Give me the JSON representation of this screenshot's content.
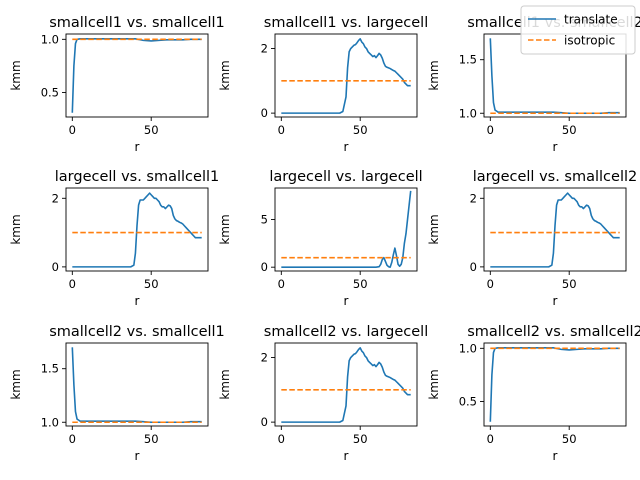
{
  "colors": {
    "translate": "#1f77b4",
    "isotropic": "#ff7f0e"
  },
  "legend": {
    "placement": "top-right",
    "entries": [
      {
        "name": "translate",
        "style": "solid",
        "color": "#1f77b4"
      },
      {
        "name": "isotropic",
        "style": "dashed",
        "color": "#ff7f0e"
      }
    ]
  },
  "chart_data": [
    {
      "type": "line",
      "title": "smallcell1 vs. smallcell1",
      "xlabel": "r",
      "ylabel": "kmm",
      "xlim": [
        -4,
        86
      ],
      "ylim": [
        0.27,
        1.05
      ],
      "xticks": [
        0,
        50
      ],
      "yticks": [
        0.5,
        1.0
      ],
      "ytick_labels": [
        "0.5",
        "1.0"
      ],
      "series": [
        {
          "name": "translate",
          "x": [
            0,
            1,
            2,
            3,
            5,
            10,
            20,
            30,
            40,
            45,
            50,
            55,
            60,
            65,
            70,
            75,
            80,
            82
          ],
          "y": [
            0.31,
            0.75,
            0.96,
            1.0,
            1.005,
            1.005,
            1.005,
            1.005,
            1.005,
            0.99,
            0.985,
            0.99,
            0.995,
            0.995,
            0.995,
            1.0,
            1.0,
            1.0
          ]
        },
        {
          "name": "isotropic",
          "x": [
            0,
            82
          ],
          "y": [
            1.0,
            1.0
          ]
        }
      ]
    },
    {
      "type": "line",
      "title": "smallcell1 vs. largecell",
      "xlabel": "r",
      "ylabel": "kmm",
      "xlim": [
        -4,
        86
      ],
      "ylim": [
        -0.12,
        2.45
      ],
      "xticks": [
        0,
        50
      ],
      "yticks": [
        0,
        2
      ],
      "ytick_labels": [
        "0",
        "2"
      ],
      "series": [
        {
          "name": "translate",
          "x": [
            0,
            10,
            20,
            30,
            37,
            39,
            41,
            42,
            43,
            44,
            45,
            46,
            47,
            48,
            49,
            50,
            51,
            52,
            53,
            54,
            55,
            56,
            57,
            58,
            59,
            60,
            61,
            62,
            63,
            64,
            65,
            66,
            67,
            68,
            69,
            70,
            71,
            72,
            73,
            74,
            75,
            76,
            77,
            78,
            79,
            80,
            82
          ],
          "y": [
            0,
            0,
            0,
            0,
            0,
            0.05,
            0.5,
            1.4,
            1.9,
            2.0,
            2.05,
            2.1,
            2.12,
            2.18,
            2.25,
            2.3,
            2.2,
            2.15,
            2.05,
            2.0,
            1.9,
            1.85,
            1.8,
            1.75,
            1.78,
            1.72,
            1.78,
            1.85,
            1.8,
            1.7,
            1.55,
            1.45,
            1.42,
            1.4,
            1.38,
            1.35,
            1.32,
            1.3,
            1.25,
            1.2,
            1.15,
            1.1,
            1.05,
            0.95,
            0.9,
            0.85,
            0.85
          ]
        },
        {
          "name": "isotropic",
          "x": [
            0,
            82
          ],
          "y": [
            1.0,
            1.0
          ]
        }
      ]
    },
    {
      "type": "line",
      "title": "smallcell1 vs. smallcell2",
      "xlabel": "r",
      "ylabel": "kmm",
      "xlim": [
        -4,
        86
      ],
      "ylim": [
        0.965,
        1.74
      ],
      "xticks": [
        0,
        50
      ],
      "yticks": [
        1.0,
        1.5
      ],
      "ytick_labels": [
        "1.0",
        "1.5"
      ],
      "series": [
        {
          "name": "translate",
          "x": [
            0,
            1,
            2,
            3,
            4,
            5,
            10,
            20,
            30,
            40,
            45,
            50,
            55,
            60,
            65,
            70,
            75,
            80,
            82
          ],
          "y": [
            1.7,
            1.35,
            1.1,
            1.03,
            1.02,
            1.01,
            1.01,
            1.01,
            1.01,
            1.01,
            1.005,
            1.0,
            1.0,
            1.0,
            1.0,
            1.0,
            1.005,
            1.005,
            1.005
          ]
        },
        {
          "name": "isotropic",
          "x": [
            0,
            82
          ],
          "y": [
            1.0,
            1.0
          ]
        }
      ]
    },
    {
      "type": "line",
      "title": "largecell vs. smallcell1",
      "xlabel": "r",
      "ylabel": "kmm",
      "xlim": [
        -4,
        86
      ],
      "ylim": [
        -0.12,
        2.3
      ],
      "xticks": [
        0,
        50
      ],
      "yticks": [
        0,
        2
      ],
      "ytick_labels": [
        "0",
        "2"
      ],
      "series": [
        {
          "name": "translate",
          "x": [
            0,
            10,
            20,
            30,
            37,
            39,
            40,
            41,
            42,
            43,
            44,
            45,
            46,
            47,
            48,
            49,
            50,
            51,
            52,
            53,
            54,
            55,
            56,
            57,
            58,
            59,
            60,
            61,
            62,
            63,
            64,
            65,
            66,
            67,
            68,
            69,
            70,
            71,
            72,
            73,
            74,
            75,
            76,
            77,
            78,
            79,
            80,
            82
          ],
          "y": [
            0,
            0,
            0,
            0,
            0,
            0.05,
            0.4,
            1.2,
            1.8,
            1.95,
            1.95,
            1.95,
            2.0,
            2.05,
            2.1,
            2.15,
            2.1,
            2.05,
            2.0,
            2.0,
            1.95,
            1.9,
            1.8,
            1.75,
            1.75,
            1.7,
            1.75,
            1.8,
            1.78,
            1.7,
            1.5,
            1.4,
            1.35,
            1.33,
            1.3,
            1.28,
            1.25,
            1.2,
            1.15,
            1.1,
            1.05,
            1.0,
            0.95,
            0.9,
            0.85,
            0.85,
            0.85,
            0.85
          ]
        },
        {
          "name": "isotropic",
          "x": [
            0,
            82
          ],
          "y": [
            1.0,
            1.0
          ]
        }
      ]
    },
    {
      "type": "line",
      "title": "largecell vs. largecell",
      "xlabel": "r",
      "ylabel": "kmm",
      "xlim": [
        -4,
        86
      ],
      "ylim": [
        -0.4,
        8.3
      ],
      "xticks": [
        0,
        50
      ],
      "yticks": [
        0,
        5
      ],
      "ytick_labels": [
        "0",
        "5"
      ],
      "series": [
        {
          "name": "translate",
          "x": [
            0,
            10,
            20,
            30,
            40,
            50,
            60,
            62,
            63,
            64,
            65,
            66,
            67,
            68,
            69,
            70,
            71,
            72,
            73,
            74,
            75,
            76,
            77,
            78,
            79,
            80,
            81,
            82
          ],
          "y": [
            0,
            0,
            0,
            0,
            0,
            0,
            0,
            0.05,
            0.3,
            0.8,
            1.0,
            0.6,
            0.2,
            0.05,
            0,
            0.5,
            1.3,
            2.0,
            1.2,
            0.3,
            0.1,
            0.3,
            1.0,
            2.5,
            3.5,
            5.0,
            6.5,
            8.0
          ]
        },
        {
          "name": "isotropic",
          "x": [
            0,
            82
          ],
          "y": [
            1.0,
            1.0
          ]
        }
      ]
    },
    {
      "type": "line",
      "title": "largecell vs. smallcell2",
      "xlabel": "r",
      "ylabel": "kmm",
      "xlim": [
        -4,
        86
      ],
      "ylim": [
        -0.12,
        2.3
      ],
      "xticks": [
        0,
        50
      ],
      "yticks": [
        0,
        2
      ],
      "ytick_labels": [
        "0",
        "2"
      ],
      "series": [
        {
          "name": "translate",
          "x": [
            0,
            10,
            20,
            30,
            37,
            39,
            40,
            41,
            42,
            43,
            44,
            45,
            46,
            47,
            48,
            49,
            50,
            51,
            52,
            53,
            54,
            55,
            56,
            57,
            58,
            59,
            60,
            61,
            62,
            63,
            64,
            65,
            66,
            67,
            68,
            69,
            70,
            71,
            72,
            73,
            74,
            75,
            76,
            77,
            78,
            79,
            80,
            82
          ],
          "y": [
            0,
            0,
            0,
            0,
            0,
            0.05,
            0.4,
            1.2,
            1.8,
            1.95,
            1.95,
            1.95,
            2.0,
            2.05,
            2.1,
            2.15,
            2.1,
            2.05,
            2.0,
            2.0,
            1.95,
            1.9,
            1.8,
            1.75,
            1.75,
            1.7,
            1.75,
            1.8,
            1.78,
            1.7,
            1.5,
            1.4,
            1.35,
            1.33,
            1.3,
            1.28,
            1.25,
            1.2,
            1.15,
            1.1,
            1.05,
            1.0,
            0.95,
            0.9,
            0.85,
            0.85,
            0.85,
            0.85
          ]
        },
        {
          "name": "isotropic",
          "x": [
            0,
            82
          ],
          "y": [
            1.0,
            1.0
          ]
        }
      ]
    },
    {
      "type": "line",
      "title": "smallcell2 vs. smallcell1",
      "xlabel": "r",
      "ylabel": "kmm",
      "xlim": [
        -4,
        86
      ],
      "ylim": [
        0.965,
        1.74
      ],
      "xticks": [
        0,
        50
      ],
      "yticks": [
        1.0,
        1.5
      ],
      "ytick_labels": [
        "1.0",
        "1.5"
      ],
      "series": [
        {
          "name": "translate",
          "x": [
            0,
            1,
            2,
            3,
            4,
            5,
            10,
            20,
            30,
            40,
            45,
            50,
            55,
            60,
            65,
            70,
            75,
            80,
            82
          ],
          "y": [
            1.7,
            1.35,
            1.1,
            1.03,
            1.02,
            1.01,
            1.01,
            1.01,
            1.01,
            1.01,
            1.005,
            1.0,
            1.0,
            1.0,
            1.0,
            1.0,
            1.005,
            1.005,
            1.005
          ]
        },
        {
          "name": "isotropic",
          "x": [
            0,
            82
          ],
          "y": [
            1.0,
            1.0
          ]
        }
      ]
    },
    {
      "type": "line",
      "title": "smallcell2 vs. largecell",
      "xlabel": "r",
      "ylabel": "kmm",
      "xlim": [
        -4,
        86
      ],
      "ylim": [
        -0.12,
        2.45
      ],
      "xticks": [
        0,
        50
      ],
      "yticks": [
        0,
        2
      ],
      "ytick_labels": [
        "0",
        "2"
      ],
      "series": [
        {
          "name": "translate",
          "x": [
            0,
            10,
            20,
            30,
            37,
            39,
            41,
            42,
            43,
            44,
            45,
            46,
            47,
            48,
            49,
            50,
            51,
            52,
            53,
            54,
            55,
            56,
            57,
            58,
            59,
            60,
            61,
            62,
            63,
            64,
            65,
            66,
            67,
            68,
            69,
            70,
            71,
            72,
            73,
            74,
            75,
            76,
            77,
            78,
            79,
            80,
            82
          ],
          "y": [
            0,
            0,
            0,
            0,
            0,
            0.05,
            0.5,
            1.4,
            1.9,
            2.0,
            2.05,
            2.1,
            2.12,
            2.18,
            2.25,
            2.3,
            2.2,
            2.15,
            2.05,
            2.0,
            1.9,
            1.85,
            1.8,
            1.75,
            1.78,
            1.72,
            1.78,
            1.85,
            1.8,
            1.7,
            1.55,
            1.45,
            1.42,
            1.4,
            1.38,
            1.35,
            1.32,
            1.3,
            1.25,
            1.2,
            1.15,
            1.1,
            1.05,
            0.95,
            0.9,
            0.85,
            0.85
          ]
        },
        {
          "name": "isotropic",
          "x": [
            0,
            82
          ],
          "y": [
            1.0,
            1.0
          ]
        }
      ]
    },
    {
      "type": "line",
      "title": "smallcell2 vs. smallcell2",
      "xlabel": "r",
      "ylabel": "kmm",
      "xlim": [
        -4,
        86
      ],
      "ylim": [
        0.27,
        1.05
      ],
      "xticks": [
        0,
        50
      ],
      "yticks": [
        0.5,
        1.0
      ],
      "ytick_labels": [
        "0.5",
        "1.0"
      ],
      "series": [
        {
          "name": "translate",
          "x": [
            0,
            1,
            2,
            3,
            5,
            10,
            20,
            30,
            40,
            45,
            50,
            55,
            60,
            65,
            70,
            75,
            80,
            82
          ],
          "y": [
            0.31,
            0.75,
            0.96,
            1.0,
            1.005,
            1.005,
            1.005,
            1.005,
            1.005,
            0.99,
            0.985,
            0.99,
            0.995,
            0.995,
            0.995,
            1.0,
            1.0,
            1.0
          ]
        },
        {
          "name": "isotropic",
          "x": [
            0,
            82
          ],
          "y": [
            1.0,
            1.0
          ]
        }
      ]
    }
  ]
}
